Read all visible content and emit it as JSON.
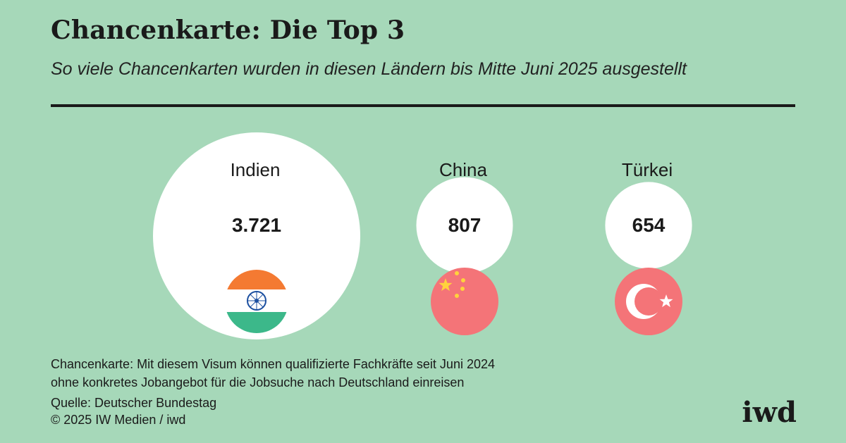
{
  "header": {
    "title": "Chancenkarte: Die Top 3",
    "subtitle": "So viele Chancenkarten wurden in diesen Ländern bis Mitte Juni 2025 ausgestellt"
  },
  "chart_data": {
    "type": "bubble",
    "title": "Chancenkarte: Die Top 3",
    "subtitle": "So viele Chancenkarten wurden in diesen Ländern bis Mitte Juni 2025 ausgestellt",
    "categories": [
      "Indien",
      "China",
      "Türkei"
    ],
    "values": [
      3721,
      807,
      654
    ],
    "value_labels": [
      "3.721",
      "807",
      "654"
    ],
    "flag_icons": [
      "india-flag-icon",
      "china-flag-icon",
      "turkey-flag-icon"
    ],
    "bubble_color": "#ffffff",
    "background_color": "#a6d8b9"
  },
  "footer": {
    "note_line1": "Chancenkarte: Mit diesem Visum können qualifizierte Fachkräfte seit Juni 2024",
    "note_line2": "ohne konkretes Jobangebot für die Jobsuche nach Deutschland einreisen",
    "source": "Quelle: Deutscher Bundestag",
    "copyright": "© 2025 IW Medien / iwd",
    "logo": "iwd"
  }
}
